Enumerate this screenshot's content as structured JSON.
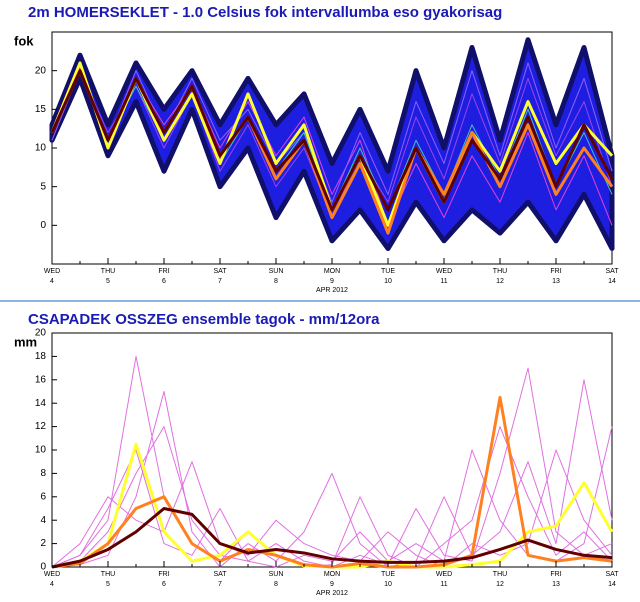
{
  "chart_data": [
    {
      "type": "line",
      "title": "2m HOMERSEKLET - 1.0 Celsius fok intervallumba eso gyakorisag",
      "ylabel": "fok",
      "xlabel": "APR 2012",
      "categories": [
        "WED",
        null,
        "THU",
        null,
        "FRI",
        null,
        "SAT",
        null,
        "SUN",
        null,
        "MON",
        null,
        "TUE",
        null,
        "WED",
        null,
        "THU",
        null,
        "FRI",
        null,
        "SAT"
      ],
      "dates": [
        "4",
        null,
        "5",
        null,
        "6",
        null,
        "7",
        null,
        "8",
        null,
        "9",
        null,
        "10",
        null,
        "11",
        null,
        "12",
        null,
        "13",
        null,
        "14"
      ],
      "label_colors": [
        "#000",
        null,
        "#000",
        null,
        "#000",
        null,
        "#000",
        null,
        "#c00000",
        null,
        "#000",
        null,
        "#000",
        null,
        "#000",
        null,
        "#000",
        null,
        "#000",
        null,
        "#000"
      ],
      "ylim": [
        -5,
        25
      ],
      "yticks": [
        0,
        5,
        10,
        15,
        20
      ],
      "band": {
        "color": "#1e1ee0",
        "edge": "#10106a",
        "upper": [
          13,
          22,
          13,
          21,
          15,
          20,
          13,
          19,
          13,
          17,
          8,
          15,
          7,
          20,
          10,
          23,
          11,
          24,
          13,
          23,
          9
        ],
        "lower": [
          11,
          19,
          9,
          16,
          7,
          15,
          5,
          10,
          1,
          7,
          -2,
          2,
          -3,
          3,
          -2,
          2,
          -1,
          3,
          -2,
          4,
          -3
        ]
      },
      "series": [
        {
          "color": "#a040f0",
          "width": 1,
          "values": [
            12,
            20,
            12,
            18,
            10,
            17,
            7,
            13,
            5,
            10,
            1,
            9,
            3,
            14,
            6,
            17,
            8,
            19,
            9,
            16,
            5
          ]
        },
        {
          "color": "#e040e0",
          "width": 1,
          "values": [
            12,
            21,
            10,
            19,
            13,
            18,
            10,
            16,
            9,
            14,
            4,
            11,
            0,
            8,
            1,
            9,
            3,
            12,
            2,
            9,
            0
          ]
        },
        {
          "color": "#9060ff",
          "width": 1,
          "values": [
            11,
            20,
            11,
            20,
            12,
            19,
            11,
            15,
            8,
            12,
            3,
            12,
            4,
            16,
            8,
            20,
            9,
            21,
            10,
            19,
            7
          ]
        },
        {
          "color": "#40c0c0",
          "width": 1,
          "values": [
            12,
            20,
            11,
            18,
            11,
            17,
            8,
            14,
            7,
            12,
            2,
            10,
            2,
            11,
            4,
            13,
            6,
            15,
            5,
            12,
            4
          ]
        },
        {
          "color": "#ffff30",
          "width": 3,
          "values": [
            12,
            21,
            10,
            19,
            11,
            17,
            8,
            17,
            8,
            13,
            2,
            9,
            0,
            10,
            3,
            12,
            7,
            16,
            8,
            13,
            9
          ]
        },
        {
          "color": "#ff8020",
          "width": 3,
          "values": [
            12,
            20,
            11,
            19,
            12,
            18,
            9,
            14,
            6,
            11,
            1,
            8,
            -1,
            10,
            4,
            12,
            5,
            13,
            4,
            10,
            5
          ]
        },
        {
          "color": "#600000",
          "width": 3,
          "values": [
            12,
            20,
            11,
            19,
            12,
            18,
            9,
            14,
            7,
            11,
            2,
            9,
            2,
            10,
            3,
            11,
            6,
            14,
            5,
            13,
            6
          ]
        }
      ]
    },
    {
      "type": "line",
      "title": "CSAPADEK OSSZEG ensemble tagok - mm/12ora",
      "ylabel": "mm",
      "xlabel": "APR 2012",
      "categories": [
        "WED",
        null,
        "THU",
        null,
        "FRI",
        null,
        "SAT",
        null,
        "SUN",
        null,
        "MON",
        null,
        "TUE",
        null,
        "WED",
        null,
        "THU",
        null,
        "FRI",
        null,
        "SAT"
      ],
      "dates": [
        "4",
        null,
        "5",
        null,
        "6",
        null,
        "7",
        null,
        "8",
        null,
        "9",
        null,
        "10",
        null,
        "11",
        null,
        "12",
        null,
        "13",
        null,
        "14"
      ],
      "label_colors": [
        "#000",
        null,
        "#000",
        null,
        "#000",
        null,
        "#000",
        null,
        "#c00000",
        null,
        "#000",
        null,
        "#000",
        null,
        "#000",
        null,
        "#000",
        null,
        "#000",
        null,
        "#000"
      ],
      "ylim": [
        0,
        20
      ],
      "yticks": [
        0,
        2,
        4,
        6,
        8,
        10,
        12,
        14,
        16,
        18,
        20
      ],
      "series": [
        {
          "color": "#e070e0",
          "width": 1,
          "values": [
            0,
            1,
            4,
            18,
            6,
            2,
            0.5,
            3,
            1,
            0,
            0.2,
            6,
            1,
            0,
            2,
            4,
            12,
            6,
            1,
            3,
            0.5
          ]
        },
        {
          "color": "#e070e0",
          "width": 1,
          "values": [
            0,
            0.5,
            3,
            8,
            12,
            4,
            1,
            0.5,
            2,
            0.5,
            0,
            1,
            0.2,
            5,
            1,
            0.5,
            8,
            17,
            3,
            1,
            2
          ]
        },
        {
          "color": "#e070e0",
          "width": 1,
          "values": [
            0,
            2,
            6,
            4,
            3,
            9,
            2,
            1,
            4,
            2,
            1,
            0.5,
            3,
            1,
            0,
            2,
            1,
            2,
            10,
            4,
            1
          ]
        },
        {
          "color": "#e070e0",
          "width": 1,
          "values": [
            0,
            0.2,
            1,
            6,
            15,
            3,
            0,
            2,
            0.5,
            3,
            8,
            2,
            0,
            0.5,
            6,
            1,
            3,
            9,
            2,
            16,
            4
          ]
        },
        {
          "color": "#e070e0",
          "width": 1,
          "values": [
            0,
            1,
            5,
            10,
            2,
            1,
            5,
            0.5,
            0,
            1,
            0.5,
            3,
            0.5,
            2,
            0.5,
            10,
            4,
            1,
            0.5,
            2,
            12
          ]
        },
        {
          "color": "#ffff30",
          "width": 3,
          "values": [
            0,
            0.5,
            2,
            10.5,
            3,
            0.5,
            1,
            3,
            1,
            0.1,
            0,
            0,
            0.5,
            0,
            0,
            0.2,
            0.5,
            3,
            3.5,
            7.2,
            3
          ]
        },
        {
          "color": "#ff8020",
          "width": 3,
          "values": [
            0,
            0.3,
            2,
            5,
            6,
            2,
            0.5,
            1.5,
            1,
            0.2,
            0,
            0.3,
            0,
            0,
            0.2,
            1,
            14.5,
            1,
            0.5,
            0.8,
            0.5
          ]
        },
        {
          "color": "#600000",
          "width": 3,
          "values": [
            0,
            0.5,
            1.5,
            3,
            5,
            4.5,
            2,
            1.2,
            1.5,
            1.2,
            0.7,
            0.5,
            0.4,
            0.4,
            0.5,
            0.8,
            1.5,
            2.3,
            1.5,
            1,
            0.8
          ]
        }
      ]
    }
  ]
}
